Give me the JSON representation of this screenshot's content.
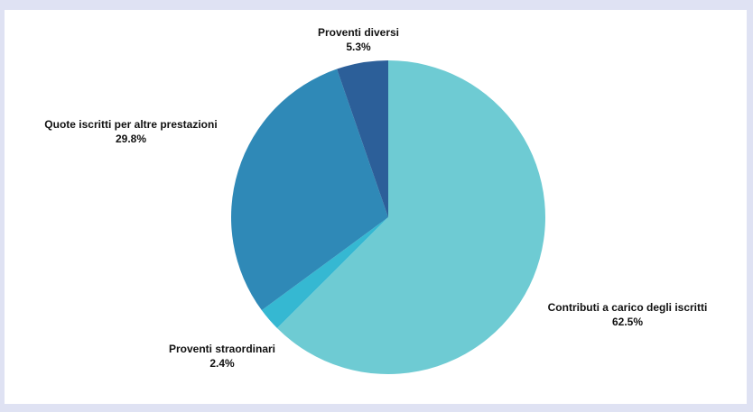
{
  "chart_data": {
    "type": "pie",
    "title": "",
    "start_angle_deg": 0,
    "direction": "clockwise",
    "slices": [
      {
        "label": "Contributi a carico degli iscritti",
        "percent_label": "62.5%",
        "value": 62.5,
        "color": "#6ecbd3"
      },
      {
        "label": "Proventi straordinari",
        "percent_label": "2.4%",
        "value": 2.4,
        "color": "#35b8d2"
      },
      {
        "label": "Quote iscritti per altre prestazioni",
        "percent_label": "29.8%",
        "value": 29.8,
        "color": "#2f89b7"
      },
      {
        "label": "Proventi diversi",
        "percent_label": "5.3%",
        "value": 5.3,
        "color": "#2c5f99"
      }
    ]
  },
  "colors": {
    "page_background": "#dfe2f3",
    "panel_background": "#ffffff",
    "label_text": "#111111"
  }
}
